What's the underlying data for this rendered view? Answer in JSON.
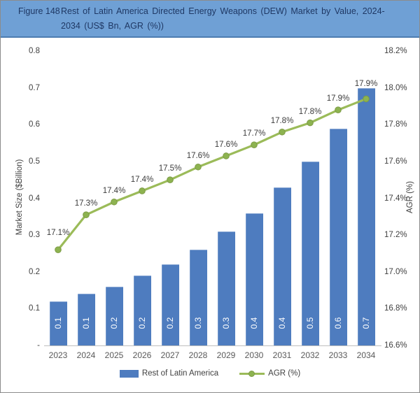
{
  "header": {
    "figure_label": "Figure 148",
    "title_line1": "Rest of Latin America Directed Energy Weapons (DEW) Market by Value, 2024-",
    "title_line2": "2034 (US$ Bn, AGR (%))"
  },
  "chart_data": {
    "type": "bar",
    "title": "Figure 148 Rest of Latin America Directed Energy Weapons (DEW) Market by Value, 2024-2034 (US$ Bn, AGR (%))",
    "categories": [
      "2023",
      "2024",
      "2025",
      "2026",
      "2027",
      "2028",
      "2029",
      "2030",
      "2031",
      "2032",
      "2033",
      "2034"
    ],
    "series": [
      {
        "name": "Rest of Latin America",
        "type": "bar",
        "axis": "left",
        "color": "#4e7cbf",
        "values": [
          0.12,
          0.14,
          0.16,
          0.19,
          0.22,
          0.26,
          0.31,
          0.36,
          0.43,
          0.5,
          0.59,
          0.7
        ],
        "labels": [
          "0.1",
          "0.1",
          "0.2",
          "0.2",
          "0.2",
          "0.3",
          "0.3",
          "0.4",
          "0.4",
          "0.5",
          "0.6",
          "0.7"
        ]
      },
      {
        "name": "AGR (%)",
        "type": "line",
        "axis": "right",
        "color": "#9bbb59",
        "marker_color": "#8db350",
        "values": [
          17.12,
          17.31,
          17.38,
          17.44,
          17.5,
          17.57,
          17.63,
          17.69,
          17.76,
          17.81,
          17.88,
          17.94
        ],
        "labels": [
          "17.1%",
          "17.3%",
          "17.4%",
          "17.4%",
          "17.5%",
          "17.6%",
          "17.6%",
          "17.7%",
          "17.8%",
          "17.8%",
          "17.9%",
          "17.9%"
        ]
      }
    ],
    "left_axis": {
      "title": "Market Size ($Billion)",
      "min": 0,
      "max": 0.8,
      "ticks": [
        "0.8",
        "0.7",
        "0.6",
        "0.5",
        "0.4",
        "0.3",
        "0.2",
        "0.1",
        "-"
      ]
    },
    "right_axis": {
      "title": "AGR (%)",
      "min": 16.6,
      "max": 18.2,
      "ticks": [
        "18.2%",
        "18.0%",
        "17.8%",
        "17.6%",
        "17.4%",
        "17.2%",
        "17.0%",
        "16.8%",
        "16.6%"
      ]
    },
    "grid": "off",
    "legend_position": "bottom",
    "legend": [
      {
        "label": "Rest of Latin America",
        "swatch": "bar",
        "color": "#4e7cbf"
      },
      {
        "label": "AGR (%)",
        "swatch": "line",
        "color": "#9bbb59"
      }
    ]
  },
  "colors": {
    "header_bg": "#6fa0d5",
    "header_border": "#4d7cb0",
    "header_text": "#1f3864",
    "bar": "#4e7cbf",
    "line": "#9bbb59",
    "axis_line": "#bfbfbf",
    "tick_text": "#404040"
  }
}
